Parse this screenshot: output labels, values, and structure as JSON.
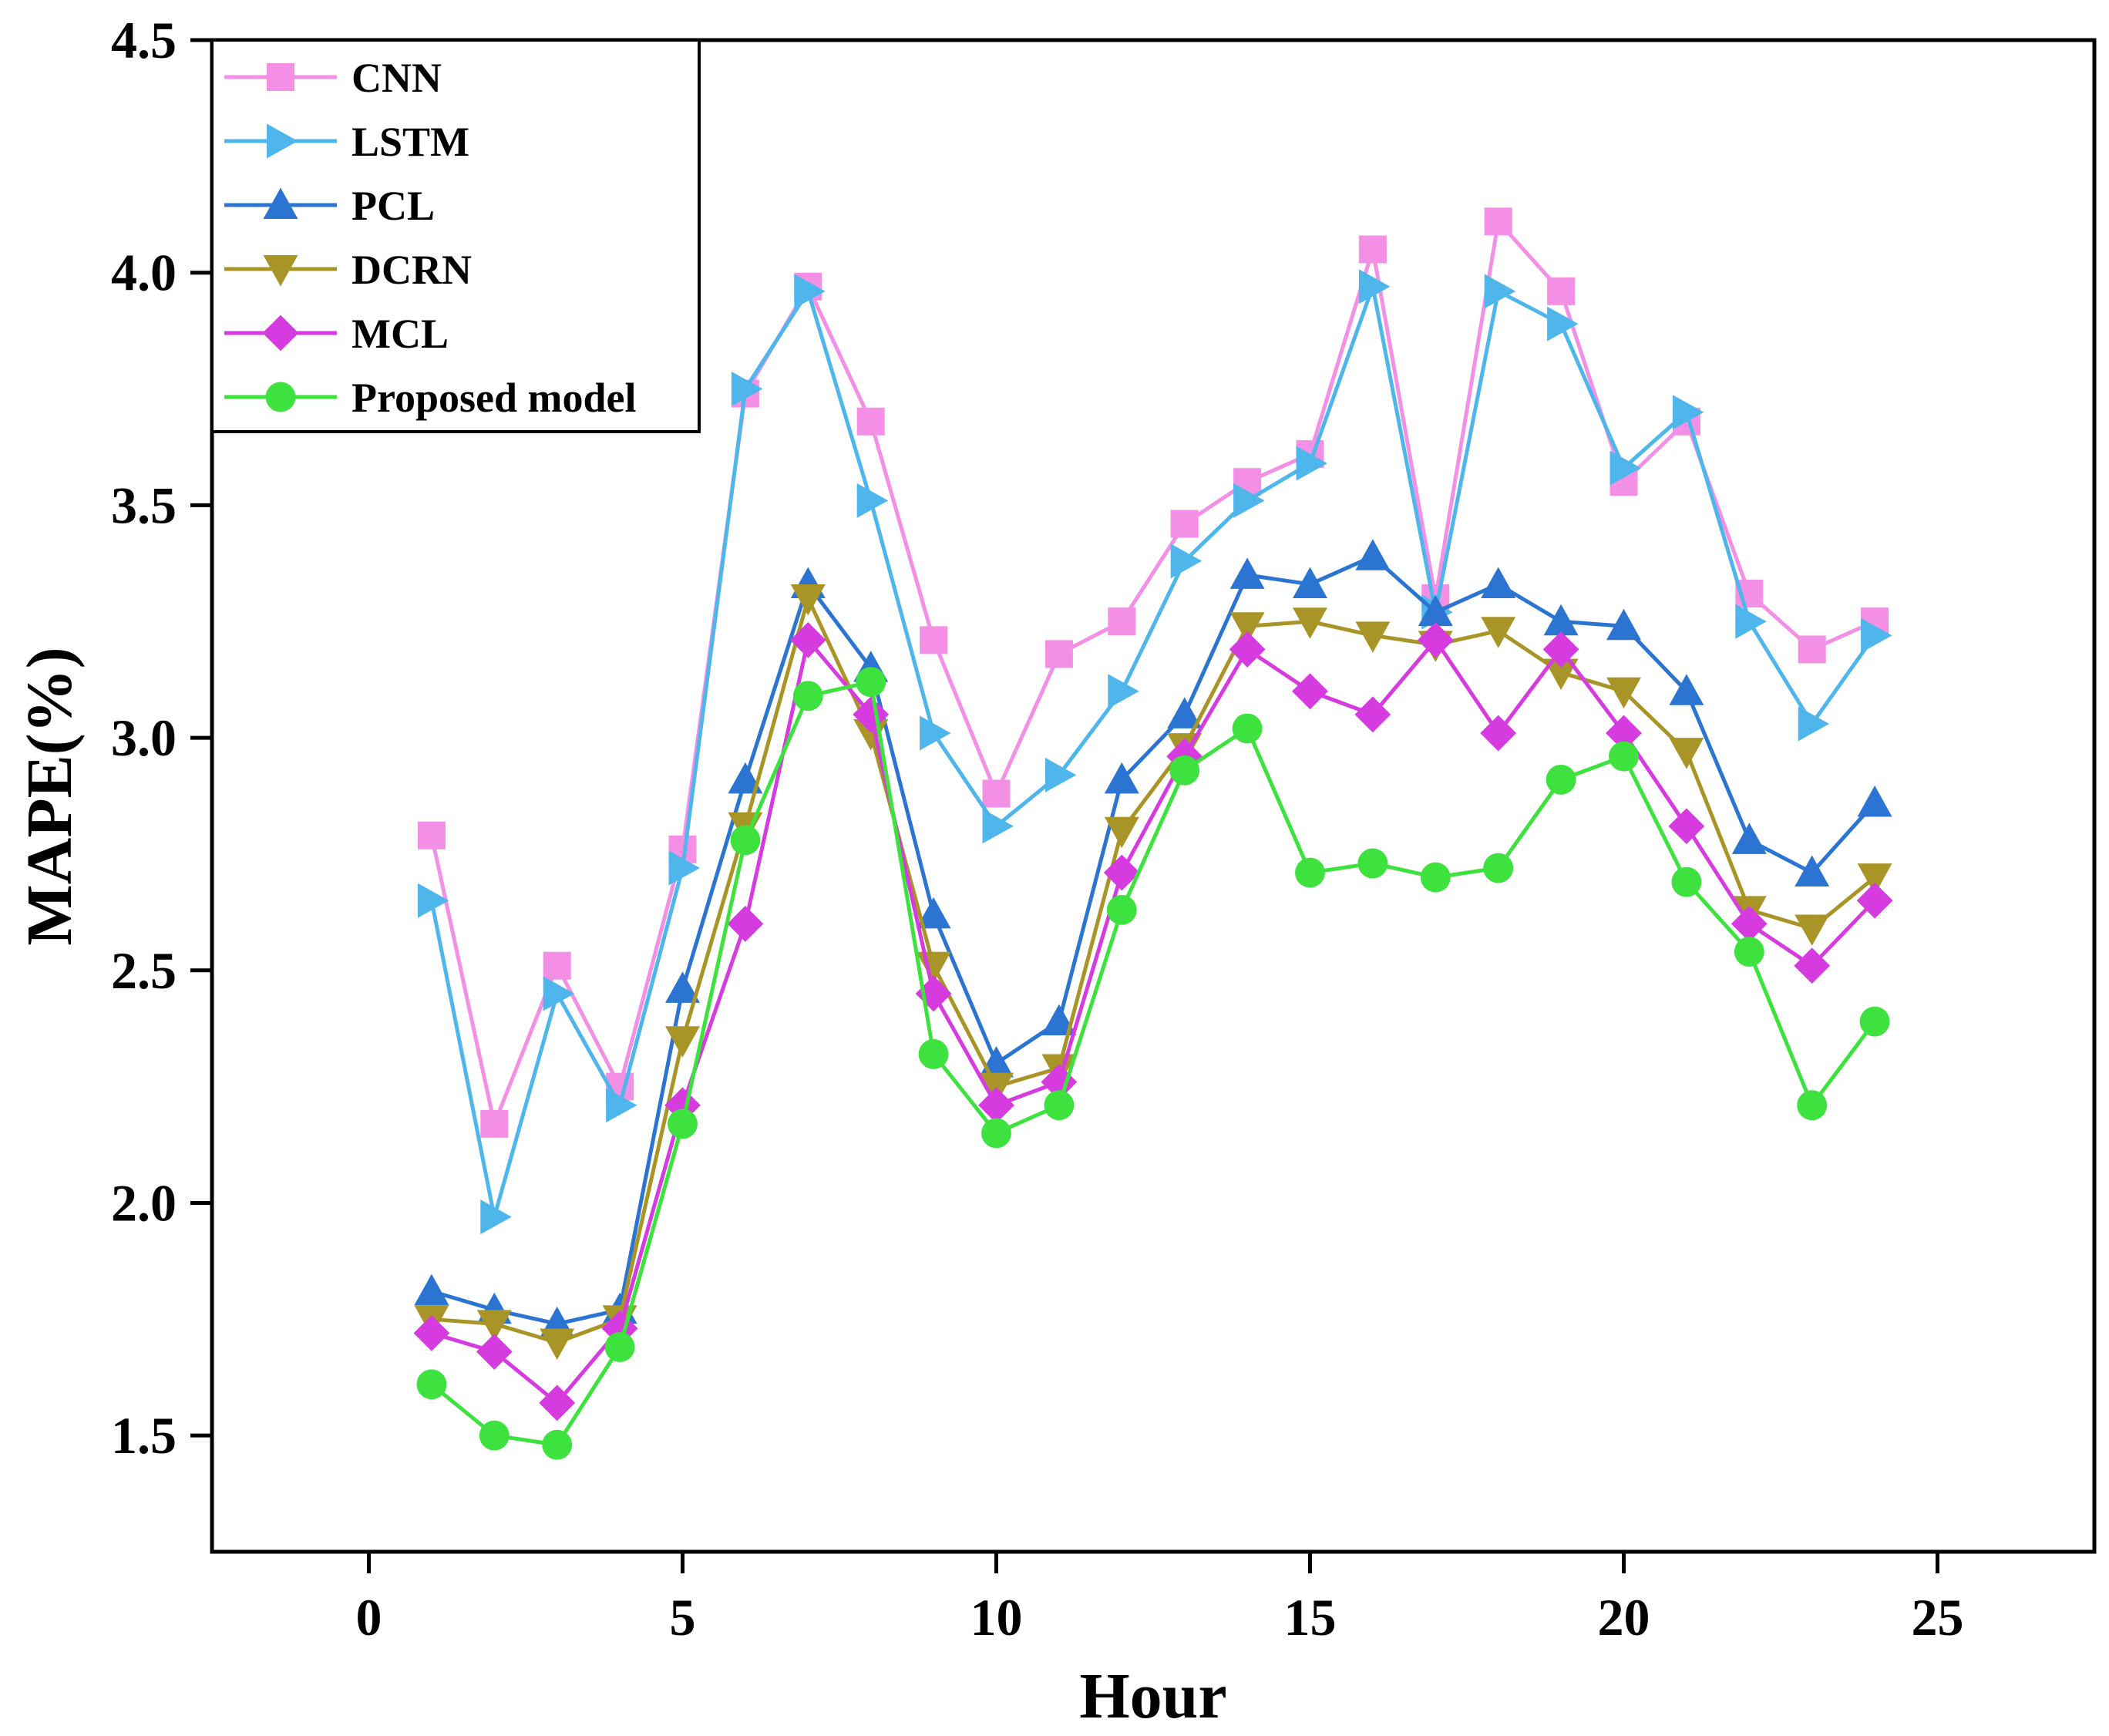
{
  "chart_data": {
    "type": "line",
    "title": "",
    "xlabel": "Hour",
    "ylabel": "MAPE(%)",
    "xlim": [
      -2.5,
      27.5
    ],
    "ylim": [
      1.25,
      4.5
    ],
    "xticks": [
      0,
      5,
      10,
      15,
      20,
      25
    ],
    "yticks": [
      1.5,
      2.0,
      2.5,
      3.0,
      3.5,
      4.0,
      4.5
    ],
    "xtick_labels": [
      "0",
      "5",
      "10",
      "15",
      "20",
      "25"
    ],
    "ytick_labels": [
      "1.5",
      "2.0",
      "2.5",
      "3.0",
      "3.5",
      "4.0",
      "4.5"
    ],
    "grid": false,
    "legend_position": "top-left",
    "x": [
      1,
      2,
      3,
      4,
      5,
      6,
      7,
      8,
      9,
      10,
      11,
      12,
      13,
      14,
      15,
      16,
      17,
      18,
      19,
      20,
      21,
      22,
      23,
      24
    ],
    "series": [
      {
        "name": "CNN",
        "color": "#f48fe6",
        "marker": "square",
        "values": [
          2.79,
          2.17,
          2.51,
          2.25,
          2.76,
          3.74,
          3.97,
          3.68,
          3.21,
          2.88,
          3.18,
          3.25,
          3.46,
          3.55,
          3.61,
          4.05,
          3.3,
          4.11,
          3.96,
          3.55,
          3.68,
          3.31,
          3.19,
          3.25
        ]
      },
      {
        "name": "LSTM",
        "color": "#4fb6ec",
        "marker": "triangle-right",
        "values": [
          2.65,
          1.97,
          2.45,
          2.21,
          2.72,
          3.75,
          3.96,
          3.51,
          3.01,
          2.81,
          2.92,
          3.1,
          3.38,
          3.51,
          3.59,
          3.97,
          3.27,
          3.96,
          3.89,
          3.58,
          3.7,
          3.25,
          3.03,
          3.22
        ]
      },
      {
        "name": "PCL",
        "color": "#2b74d1",
        "marker": "triangle-up",
        "values": [
          1.81,
          1.77,
          1.74,
          1.77,
          2.46,
          2.91,
          3.33,
          3.15,
          2.62,
          2.3,
          2.39,
          2.91,
          3.05,
          3.35,
          3.33,
          3.39,
          3.27,
          3.33,
          3.25,
          3.24,
          3.1,
          2.78,
          2.71,
          2.86
        ]
      },
      {
        "name": "DCRN",
        "color": "#a99527",
        "marker": "triangle-down",
        "values": [
          1.75,
          1.74,
          1.7,
          1.75,
          2.35,
          2.81,
          3.3,
          3.01,
          2.51,
          2.25,
          2.29,
          2.8,
          2.98,
          3.24,
          3.25,
          3.22,
          3.2,
          3.23,
          3.14,
          3.1,
          2.97,
          2.63,
          2.59,
          2.7
        ]
      },
      {
        "name": "MCL",
        "color": "#d63be0",
        "marker": "diamond",
        "values": [
          1.72,
          1.68,
          1.57,
          1.73,
          2.21,
          2.6,
          3.21,
          3.05,
          2.45,
          2.21,
          2.26,
          2.71,
          2.96,
          3.19,
          3.1,
          3.05,
          3.21,
          3.01,
          3.19,
          3.01,
          2.81,
          2.6,
          2.51,
          2.65
        ]
      },
      {
        "name": "Proposed model",
        "color": "#3ee23e",
        "marker": "circle",
        "values": [
          1.61,
          1.5,
          1.48,
          1.69,
          2.17,
          2.78,
          3.09,
          3.12,
          2.32,
          2.15,
          2.21,
          2.63,
          2.93,
          3.02,
          2.71,
          2.73,
          2.7,
          2.72,
          2.91,
          2.96,
          2.69,
          2.54,
          2.21,
          2.39
        ]
      }
    ]
  }
}
